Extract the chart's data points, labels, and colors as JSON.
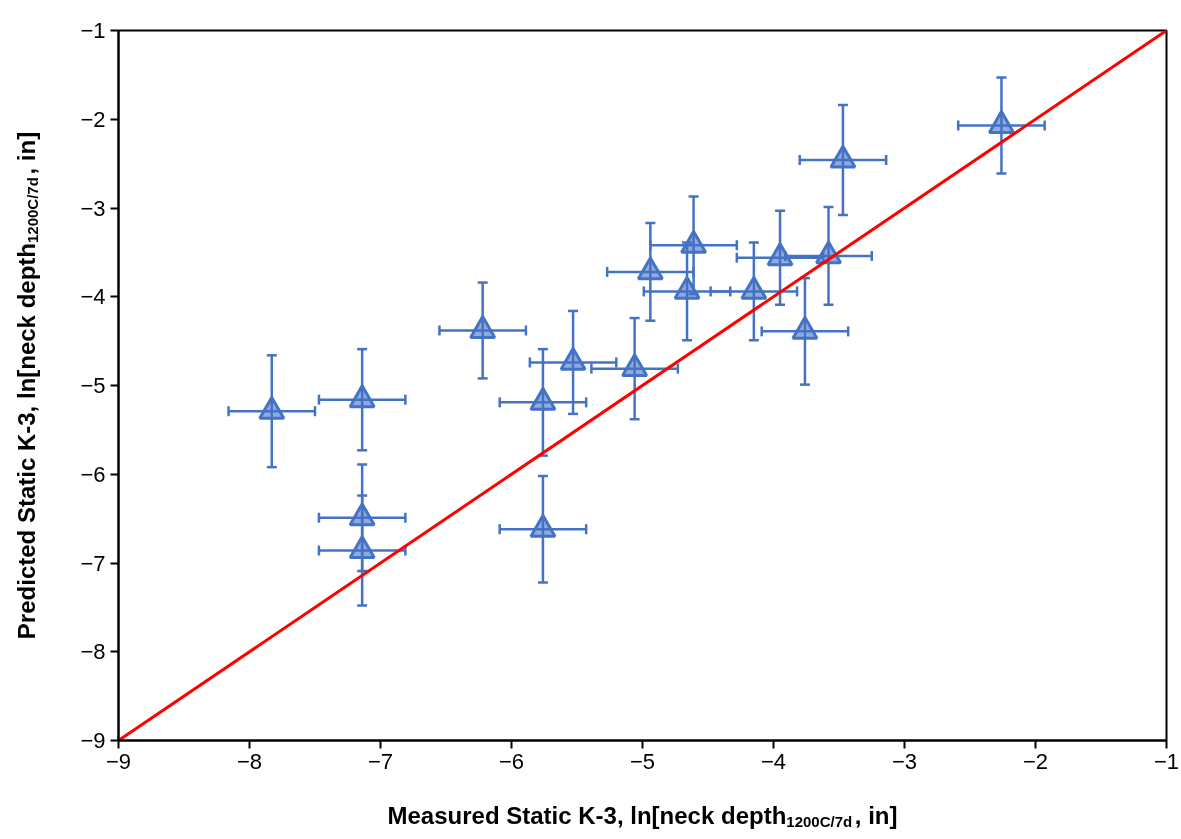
{
  "chart_data": {
    "type": "scatter",
    "xlabel": "Measured Static K-3, ln[neck depth$_{1200C/7d}$, in]",
    "ylabel": "Predicted Static K-3, ln[neck depth$_{1200C/7d}$, in]",
    "xlim": [
      -9,
      -1
    ],
    "ylim": [
      -9,
      -1
    ],
    "xticks": [
      -9,
      -8,
      -7,
      -6,
      -5,
      -4,
      -3,
      -2,
      -1
    ],
    "yticks": [
      -9,
      -8,
      -7,
      -6,
      -5,
      -4,
      -3,
      -2,
      -1
    ],
    "grid": false,
    "series": [
      {
        "type": "scatter",
        "color": "#4472c4",
        "marker": "triangle",
        "x": [
          -7.83,
          -7.14,
          -7.14,
          -7.14,
          -5.76,
          -5.76,
          -6.22,
          -5.53,
          -5.06,
          -4.94,
          -4.61,
          -4.66,
          -4.15,
          -3.95,
          -3.58,
          -3.76,
          -3.47,
          -2.26
        ],
        "values": [
          -5.29,
          -5.16,
          -6.49,
          -6.86,
          -6.62,
          -5.19,
          -4.38,
          -4.74,
          -4.81,
          -3.72,
          -3.42,
          -3.94,
          -3.94,
          -3.56,
          -3.54,
          -4.39,
          -2.46,
          -2.07
        ],
        "errors": [
          0.63,
          0.57,
          0.6,
          0.62,
          0.6,
          0.6,
          0.54,
          0.58,
          0.57,
          0.55,
          0.55,
          0.55,
          0.55,
          0.53,
          0.55,
          0.6,
          0.62,
          0.54
        ],
        "xerrors": [
          0.33,
          0.33,
          0.33,
          0.33,
          0.33,
          0.33,
          0.33,
          0.33,
          0.33,
          0.33,
          0.33,
          0.33,
          0.33,
          0.33,
          0.33,
          0.33,
          0.33,
          0.33
        ]
      },
      {
        "type": "line",
        "color": "#ff0000",
        "marker": "none",
        "line_style": "solid",
        "x": [
          -9,
          -1
        ],
        "values": [
          -9,
          -1
        ]
      }
    ]
  }
}
